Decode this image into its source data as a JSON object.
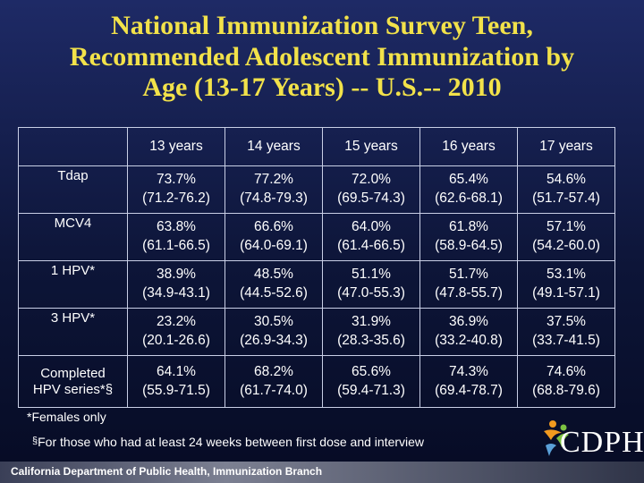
{
  "title": {
    "line1": "National Immunization Survey Teen,",
    "line2": "Recommended Adolescent Immunization by",
    "line3": "Age (13-17 Years) -- U.S.-- 2010"
  },
  "table": {
    "columns": [
      "13 years",
      "14 years",
      "15 years",
      "16 years",
      "17 years"
    ],
    "rows": [
      {
        "label": "Tdap",
        "cells": [
          {
            "value": "73.7%",
            "ci": "(71.2-76.2)"
          },
          {
            "value": "77.2%",
            "ci": "(74.8-79.3)"
          },
          {
            "value": "72.0%",
            "ci": "(69.5-74.3)"
          },
          {
            "value": "65.4%",
            "ci": "(62.6-68.1)"
          },
          {
            "value": "54.6%",
            "ci": "(51.7-57.4)"
          }
        ]
      },
      {
        "label": "MCV4",
        "cells": [
          {
            "value": "63.8%",
            "ci": "(61.1-66.5)"
          },
          {
            "value": "66.6%",
            "ci": "(64.0-69.1)"
          },
          {
            "value": "64.0%",
            "ci": "(61.4-66.5)"
          },
          {
            "value": "61.8%",
            "ci": "(58.9-64.5)"
          },
          {
            "value": "57.1%",
            "ci": "(54.2-60.0)"
          }
        ]
      },
      {
        "label": "1 HPV*",
        "cells": [
          {
            "value": "38.9%",
            "ci": "(34.9-43.1)"
          },
          {
            "value": "48.5%",
            "ci": "(44.5-52.6)"
          },
          {
            "value": "51.1%",
            "ci": "(47.0-55.3)"
          },
          {
            "value": "51.7%",
            "ci": "(47.8-55.7)"
          },
          {
            "value": "53.1%",
            "ci": "(49.1-57.1)"
          }
        ]
      },
      {
        "label": "3 HPV*",
        "cells": [
          {
            "value": "23.2%",
            "ci": "(20.1-26.6)"
          },
          {
            "value": "30.5%",
            "ci": "(26.9-34.3)"
          },
          {
            "value": "31.9%",
            "ci": "(28.3-35.6)"
          },
          {
            "value": "36.9%",
            "ci": "(33.2-40.8)"
          },
          {
            "value": "37.5%",
            "ci": "(33.7-41.5)"
          }
        ]
      },
      {
        "label_line1": "Completed",
        "label_line2": "HPV series*§",
        "cells": [
          {
            "value": "64.1%",
            "ci": "(55.9-71.5)"
          },
          {
            "value": "68.2%",
            "ci": "(61.7-74.0)"
          },
          {
            "value": "65.6%",
            "ci": "(59.4-71.3)"
          },
          {
            "value": "74.3%",
            "ci": "(69.4-78.7)"
          },
          {
            "value": "74.6%",
            "ci": "(68.8-79.6)"
          }
        ]
      }
    ]
  },
  "footnotes": {
    "females": "*Females only",
    "symbol": "§",
    "interval": "For those who had at least 24 weeks between first dose and interview"
  },
  "footer": {
    "organization": "California Department of Public Health, Immunization Branch",
    "logo_text": "CDPH"
  },
  "colors": {
    "title": "#f2e24a",
    "background": "#0d1538",
    "text": "#ffffff",
    "logo_orange": "#f29a1f",
    "logo_green": "#7cc242",
    "logo_blue": "#5aa0d8"
  }
}
